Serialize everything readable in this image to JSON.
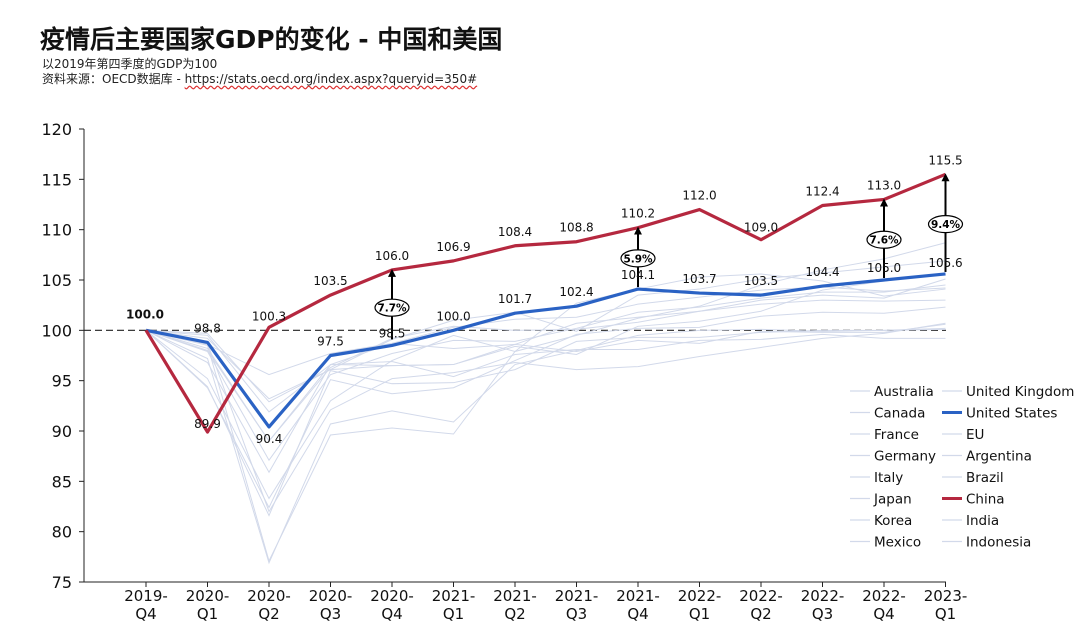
{
  "header": {
    "title": "疫情后主要国家GDP的变化 - 中国和美国",
    "subtitle": "以2019年第四季度的GDP为100",
    "source_prefix": "资料来源：OECD数据库 - ",
    "source_url": "https://stats.oecd.org/index.aspx?queryid=350#"
  },
  "chart_data": {
    "type": "line",
    "title": "疫情后主要国家GDP的变化 - 中国和美国",
    "ylim": [
      75,
      120
    ],
    "yticks": [
      75,
      80,
      85,
      90,
      95,
      100,
      105,
      110,
      115,
      120
    ],
    "baseline": 100,
    "categories": [
      "2019-\nQ4",
      "2020-\nQ1",
      "2020-\nQ2",
      "2020-\nQ3",
      "2020-\nQ4",
      "2021-\nQ1",
      "2021-\nQ2",
      "2021-\nQ3",
      "2021-\nQ4",
      "2022-\nQ1",
      "2022-\nQ2",
      "2022-\nQ3",
      "2022-\nQ4",
      "2023-\nQ1"
    ],
    "series": [
      {
        "name": "Australia",
        "values": [
          100,
          99.7,
          92.9,
          96.1,
          99.1,
          101.0,
          101.8,
          99.9,
          103.5,
          104.1,
          105.1,
          105.7,
          106.3,
          106.9
        ]
      },
      {
        "name": "Canada",
        "values": [
          100,
          97.9,
          87.1,
          95.6,
          97.7,
          99.0,
          98.9,
          100.2,
          101.8,
          102.3,
          103.2,
          103.8,
          103.8,
          104.5
        ]
      },
      {
        "name": "France",
        "values": [
          100,
          94.4,
          81.6,
          96.0,
          94.7,
          94.8,
          96.1,
          98.9,
          99.3,
          99.3,
          99.8,
          100.0,
          100.0,
          100.2
        ]
      },
      {
        "name": "Germany",
        "values": [
          100,
          98.2,
          89.0,
          96.6,
          96.9,
          95.4,
          97.6,
          98.1,
          98.1,
          99.0,
          99.1,
          99.6,
          99.2,
          99.2
        ]
      },
      {
        "name": "Italy",
        "values": [
          100,
          94.3,
          82.4,
          95.1,
          93.7,
          94.3,
          97.0,
          99.6,
          100.2,
          100.3,
          101.4,
          101.8,
          101.7,
          102.3
        ]
      },
      {
        "name": "Japan",
        "values": [
          100,
          99.5,
          91.9,
          96.6,
          98.7,
          98.2,
          98.6,
          97.9,
          99.0,
          98.7,
          99.9,
          99.8,
          99.8,
          100.6
        ]
      },
      {
        "name": "Korea",
        "values": [
          100,
          98.6,
          95.6,
          97.7,
          98.7,
          100.3,
          101.1,
          101.3,
          102.6,
          103.3,
          104.0,
          104.3,
          103.9,
          104.2
        ]
      },
      {
        "name": "Mexico",
        "values": [
          100,
          98.7,
          82.0,
          92.1,
          95.2,
          95.8,
          96.8,
          96.1,
          96.4,
          97.4,
          98.3,
          99.2,
          99.7,
          100.7
        ]
      },
      {
        "name": "United Kingdom",
        "values": [
          100,
          97.2,
          76.9,
          90.7,
          92.0,
          90.9,
          96.6,
          98.0,
          99.5,
          100.0,
          100.1,
          99.9,
          100.0,
          100.1
        ]
      },
      {
        "name": "United States",
        "values": [
          100.0,
          98.8,
          90.4,
          97.5,
          98.5,
          100.0,
          101.7,
          102.4,
          104.1,
          103.7,
          103.5,
          104.4,
          105.0,
          105.6
        ]
      },
      {
        "name": "EU",
        "values": [
          100,
          96.8,
          85.9,
          96.6,
          96.5,
          96.6,
          98.6,
          100.7,
          101.3,
          101.9,
          102.6,
          103.0,
          102.9,
          103.0
        ]
      },
      {
        "name": "Argentina",
        "values": [
          100,
          95.2,
          83.3,
          93.0,
          97.0,
          99.5,
          97.9,
          102.7,
          104.1,
          105.3,
          105.6,
          104.9,
          103.4,
          104.1
        ]
      },
      {
        "name": "Brazil",
        "values": [
          100,
          98.0,
          89.0,
          96.3,
          99.2,
          100.4,
          100.0,
          100.1,
          100.8,
          101.9,
          103.0,
          103.5,
          103.2,
          105.1
        ]
      },
      {
        "name": "China",
        "values": [
          100.0,
          89.9,
          100.3,
          103.5,
          106.0,
          106.9,
          108.4,
          108.8,
          110.2,
          112.0,
          109.0,
          112.4,
          113.0,
          115.5
        ]
      },
      {
        "name": "India",
        "values": [
          100,
          98.5,
          77.1,
          89.6,
          90.3,
          89.7,
          97.9,
          99.5,
          101.2,
          102.4,
          104.5,
          106.0,
          107.1,
          108.7
        ]
      },
      {
        "name": "Indonesia",
        "values": [
          100,
          99.2,
          93.2,
          96.1,
          96.5,
          96.6,
          98.4,
          97.6,
          100.4,
          100.9,
          101.9,
          104.0,
          104.9,
          105.6
        ]
      }
    ],
    "highlight_series": [
      "China",
      "United States"
    ],
    "highlight_colors": {
      "China": "#b5283f",
      "United States": "#2a62c4"
    },
    "other_color": "#d2d9ea",
    "gaps": [
      {
        "index": 4,
        "label": "7.7%"
      },
      {
        "index": 8,
        "label": "5.9%"
      },
      {
        "index": 12,
        "label": "7.6%"
      },
      {
        "index": 13,
        "label": "9.4%"
      }
    ],
    "legend": {
      "position": "bottom-right",
      "left_column": [
        "Australia",
        "Canada",
        "France",
        "Germany",
        "Italy",
        "Japan",
        "Korea",
        "Mexico"
      ],
      "right_column": [
        "United Kingdom",
        "United States",
        "EU",
        "Argentina",
        "Brazil",
        "China",
        "India",
        "Indonesia"
      ]
    }
  }
}
